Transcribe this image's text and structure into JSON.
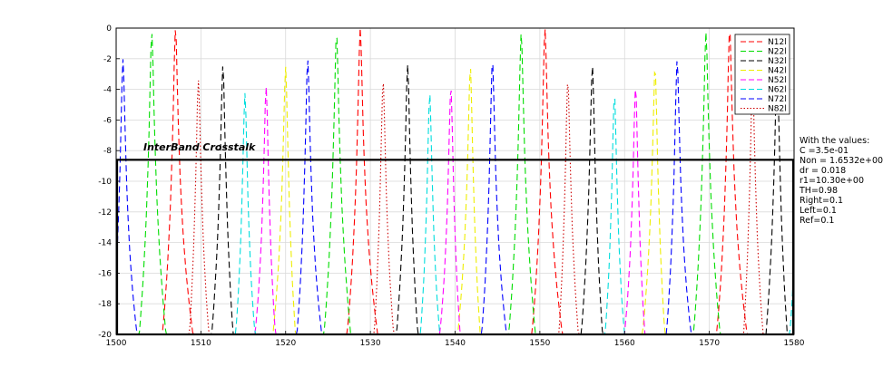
{
  "chart_data": {
    "type": "line",
    "title": "",
    "xlabel": "",
    "ylabel": "",
    "xlim": [
      1500,
      1580
    ],
    "ylim": [
      -20,
      0
    ],
    "xticks": [
      1500,
      1510,
      1520,
      1530,
      1540,
      1550,
      1560,
      1570,
      1580
    ],
    "yticks": [
      0,
      -2,
      -4,
      -6,
      -8,
      -10,
      -12,
      -14,
      -16,
      -18,
      -20
    ],
    "grid": true,
    "legend_position": "top-right",
    "fsr": 21.8,
    "series": [
      {
        "name": "N12l",
        "color": "#ff0000",
        "dash": "dashed",
        "peak_x": 1507.0,
        "peak_y": 0.0
      },
      {
        "name": "N22l",
        "color": "#00dd00",
        "dash": "dashed",
        "peak_x": 1504.2,
        "peak_y": -1.3
      },
      {
        "name": "N32l",
        "color": "#000000",
        "dash": "dashed",
        "peak_x": 1512.6,
        "peak_y": -3.5
      },
      {
        "name": "N42l",
        "color": "#eeee00",
        "dash": "dashed",
        "peak_x": 1520.0,
        "peak_y": -2.7
      },
      {
        "name": "N52l",
        "color": "#ff00ff",
        "dash": "dashed",
        "peak_x": 1517.7,
        "peak_y": -2.9
      },
      {
        "name": "N62l",
        "color": "#00dddd",
        "dash": "dashed",
        "peak_x": 1515.2,
        "peak_y": -3.1
      },
      {
        "name": "N72l",
        "color": "#0000ff",
        "dash": "dashed",
        "peak_x": 1500.8,
        "peak_y": -1.7
      },
      {
        "name": "N82l",
        "color": "#cc0000",
        "dash": "dotted",
        "peak_x": 1509.7,
        "peak_y": -4.2
      }
    ],
    "annotation": "InterBand Crosstalk",
    "annotation_box_ylim": [
      -20,
      -8.6
    ],
    "param_note": [
      "With the values:",
      "C =3.5e-01",
      "Non = 1.6532e+00",
      "dr = 0.018",
      "r1=10.30e+00",
      "TH=0.98",
      "Right=0.1",
      "Left=0.1",
      "Ref=0.1"
    ]
  }
}
